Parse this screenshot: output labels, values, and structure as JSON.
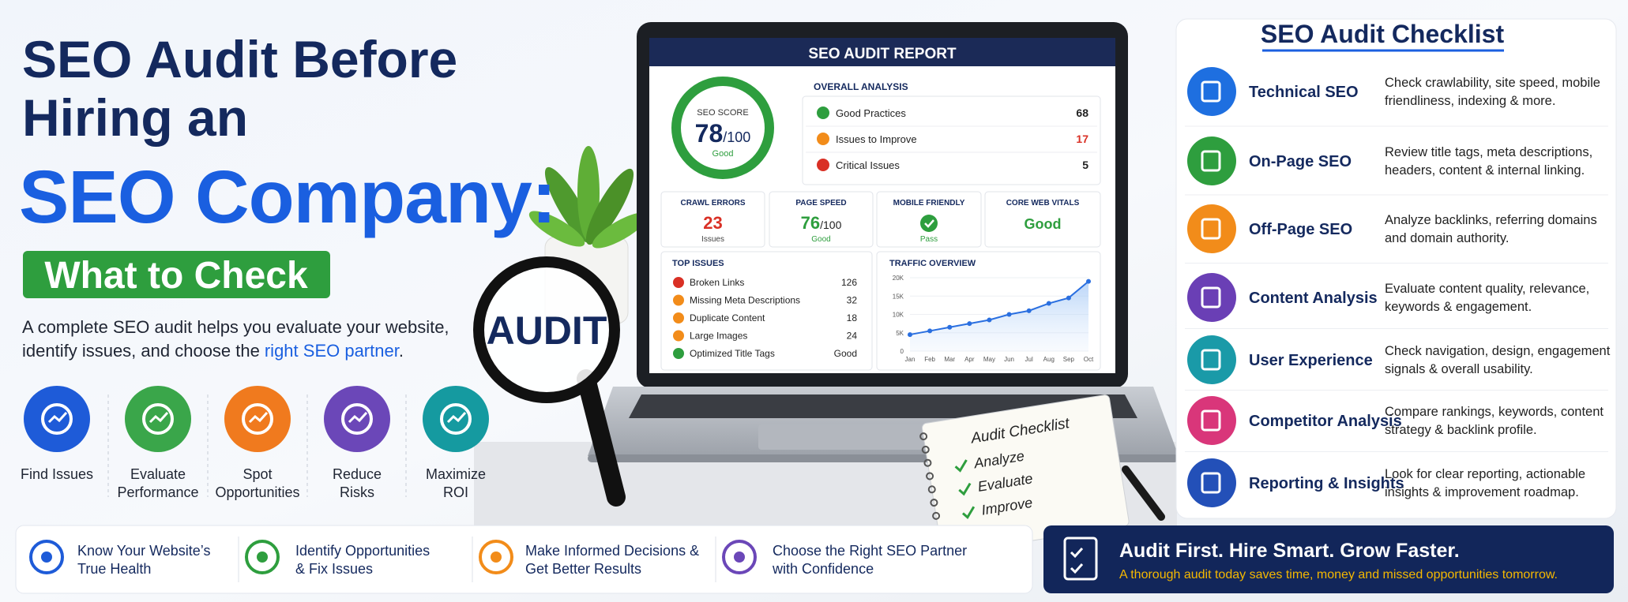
{
  "header": {
    "title_line1": "SEO Audit Before",
    "title_line2": "Hiring an",
    "title_line3": "SEO Company:",
    "badge": "What to Check"
  },
  "intro": {
    "line1": "A complete SEO audit helps you evaluate your website,",
    "line2": "identify issues, and choose the",
    "link": "right SEO partner",
    "end": "."
  },
  "benefits": [
    {
      "line1": "Find Issues"
    },
    {
      "line1": "Evaluate",
      "line2": "Performance"
    },
    {
      "line1": "Spot",
      "line2": "Opportunities"
    },
    {
      "line1": "Reduce",
      "line2": "Risks"
    },
    {
      "line1": "Maximize",
      "line2": "ROI"
    }
  ],
  "report": {
    "title": "SEO AUDIT REPORT",
    "score_label": "SEO SCORE",
    "score": 78,
    "score_max": "/100",
    "score_status": "Good",
    "overall_title": "OVERALL ANALYSIS",
    "overall": [
      {
        "label": "Good Practices",
        "value": 68
      },
      {
        "label": "Issues to Improve",
        "value": 17
      },
      {
        "label": "Critical Issues",
        "value": 5
      }
    ],
    "metrics": [
      {
        "label": "CRAWL ERRORS",
        "value": 23,
        "status": "Issues"
      },
      {
        "label": "PAGE SPEED",
        "value": 76,
        "unit": "/100",
        "status": "Good"
      },
      {
        "label": "MOBILE FRIENDLY",
        "status": "Pass"
      },
      {
        "label": "CORE WEB VITALS",
        "status": "Good"
      }
    ],
    "issues_title": "TOP ISSUES",
    "issues": [
      {
        "label": "Broken Links",
        "value": 126
      },
      {
        "label": "Missing Meta Descriptions",
        "value": 32
      },
      {
        "label": "Duplicate Content",
        "value": 18
      },
      {
        "label": "Large Images",
        "value": 24
      },
      {
        "label": "Optimized Title Tags",
        "value": "Good"
      }
    ],
    "traffic": {
      "title": "TRAFFIC OVERVIEW",
      "categories": [
        "Jan",
        "Feb",
        "Mar",
        "Apr",
        "May",
        "Jun",
        "Jul",
        "Aug",
        "Sep",
        "Oct"
      ],
      "values": [
        4500,
        5500,
        6500,
        7500,
        8500,
        10000,
        11000,
        13000,
        14500,
        19000
      ],
      "ylim": [
        0,
        20000
      ],
      "yticks": [
        {
          "value": 0,
          "label": "0"
        },
        {
          "value": 5000,
          "label": "5K"
        },
        {
          "value": 10000,
          "label": "10K"
        },
        {
          "value": 15000,
          "label": "15K"
        },
        {
          "value": 20000,
          "label": "20K"
        }
      ]
    }
  },
  "magnifier": "AUDIT",
  "notepad": {
    "title": "Audit Checklist",
    "items": [
      "Analyze",
      "Evaluate",
      "Improve"
    ]
  },
  "checklist": {
    "title": "SEO Audit Checklist",
    "items": [
      {
        "title": "Technical SEO",
        "desc1": "Check crawlability, site speed, mobile",
        "desc2": "friendliness, indexing & more."
      },
      {
        "title": "On-Page SEO",
        "desc1": "Review title tags, meta descriptions,",
        "desc2": "headers, content & internal linking."
      },
      {
        "title": "Off-Page SEO",
        "desc1": "Analyze backlinks, referring domains",
        "desc2": "and domain authority."
      },
      {
        "title": "Content Analysis",
        "desc1": "Evaluate content quality, relevance,",
        "desc2": "keywords & engagement."
      },
      {
        "title": "User Experience",
        "desc1": "Check navigation, design, engagement",
        "desc2": "signals & overall usability."
      },
      {
        "title": "Competitor Analysis",
        "desc1": "Compare rankings, keywords, content",
        "desc2": "strategy & backlink profile."
      },
      {
        "title": "Reporting & Insights",
        "desc1": "Look for clear reporting, actionable",
        "desc2": "insights & improvement roadmap."
      }
    ]
  },
  "footer": {
    "items": [
      {
        "line1": "Know Your Website’s",
        "line2": "True Health"
      },
      {
        "line1": "Identify Opportunities",
        "line2": "& Fix Issues"
      },
      {
        "line1": "Make Informed Decisions &",
        "line2": "Get Better Results"
      },
      {
        "line1": "Choose the Right SEO Partner",
        "line2": "with Confidence"
      }
    ],
    "banner_title": "Audit First. Hire Smart. Grow Faster.",
    "banner_subtitle": "A thorough audit today saves time, money and missed opportunities tomorrow."
  }
}
